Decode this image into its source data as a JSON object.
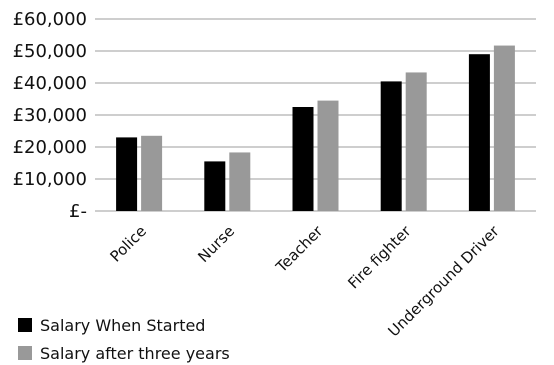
{
  "chart_data": {
    "type": "bar",
    "categories": [
      "Police",
      "Nurse",
      "Teacher",
      "Fire fighter",
      "Underground Driver"
    ],
    "series": [
      {
        "name": "Salary When Started",
        "color": "#000000",
        "values": [
          23000,
          15500,
          32500,
          40500,
          49000
        ]
      },
      {
        "name": "Salary after three years",
        "color": "#999999",
        "values": [
          23500,
          18300,
          34500,
          43300,
          51700
        ]
      }
    ],
    "y_ticks": [
      {
        "value": 0,
        "label": "£-"
      },
      {
        "value": 10000,
        "label": "£10,000"
      },
      {
        "value": 20000,
        "label": "£20,000"
      },
      {
        "value": 30000,
        "label": "£30,000"
      },
      {
        "value": 40000,
        "label": "£40,000"
      },
      {
        "value": 50000,
        "label": "£50,000"
      },
      {
        "value": 60000,
        "label": "£60,000"
      }
    ],
    "ylim": [
      0,
      60000
    ],
    "grid": true,
    "legend": "bottom-left",
    "title": "",
    "xlabel": "",
    "ylabel": ""
  }
}
